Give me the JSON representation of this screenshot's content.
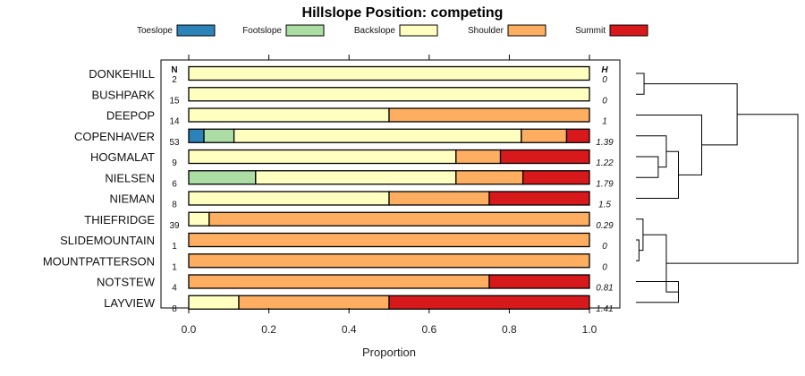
{
  "chart_data": {
    "type": "bar",
    "orientation": "horizontal-stacked",
    "title": "Hillslope Position: competing",
    "xlabel": "Proportion",
    "xlim": [
      0,
      1
    ],
    "xticks": [
      "0.0",
      "0.2",
      "0.4",
      "0.6",
      "0.8",
      "1.0"
    ],
    "n_header": "N",
    "h_header": "H",
    "legend_position": "top",
    "series": [
      {
        "name": "Toeslope",
        "color": "#2b83ba"
      },
      {
        "name": "Footslope",
        "color": "#abdda4"
      },
      {
        "name": "Backslope",
        "color": "#ffffbf"
      },
      {
        "name": "Shoulder",
        "color": "#fdae61"
      },
      {
        "name": "Summit",
        "color": "#d7191c"
      }
    ],
    "rows": [
      {
        "label": "DONKEHILL",
        "n": "2",
        "h": "0",
        "values": [
          0,
          0,
          1,
          0,
          0
        ]
      },
      {
        "label": "BUSHPARK",
        "n": "15",
        "h": "0",
        "values": [
          0,
          0,
          1,
          0,
          0
        ]
      },
      {
        "label": "DEEPOP",
        "n": "14",
        "h": "1",
        "values": [
          0,
          0,
          0.5,
          0.5,
          0
        ]
      },
      {
        "label": "COPENHAVER",
        "n": "53",
        "h": "1.39",
        "values": [
          0.038,
          0.075,
          0.717,
          0.113,
          0.057
        ]
      },
      {
        "label": "HOGMALAT",
        "n": "9",
        "h": "1.22",
        "values": [
          0,
          0,
          0.667,
          0.111,
          0.222
        ]
      },
      {
        "label": "NIELSEN",
        "n": "6",
        "h": "1.79",
        "values": [
          0,
          0.167,
          0.5,
          0.167,
          0.166
        ]
      },
      {
        "label": "NIEMAN",
        "n": "8",
        "h": "1.5",
        "values": [
          0,
          0,
          0.5,
          0.25,
          0.25
        ]
      },
      {
        "label": "THIEFRIDGE",
        "n": "39",
        "h": "0.29",
        "values": [
          0,
          0,
          0.051,
          0.949,
          0
        ]
      },
      {
        "label": "SLIDEMOUNTAIN",
        "n": "1",
        "h": "0",
        "values": [
          0,
          0,
          0,
          1,
          0
        ]
      },
      {
        "label": "MOUNTPATTERSON",
        "n": "1",
        "h": "0",
        "values": [
          0,
          0,
          0,
          1,
          0
        ]
      },
      {
        "label": "NOTSTEW",
        "n": "4",
        "h": "0.81",
        "values": [
          0,
          0,
          0,
          0.75,
          0.25
        ]
      },
      {
        "label": "LAYVIEW",
        "n": "8",
        "h": "1.41",
        "values": [
          0,
          0,
          0.125,
          0.375,
          0.5
        ]
      }
    ],
    "dendrogram": {
      "nodes": [
        {
          "left": "r0",
          "right": "r1",
          "height": 0.08
        },
        {
          "left": "r4",
          "right": "r5",
          "height": 0.22
        },
        {
          "left": "r3",
          "right": "n1",
          "height": 0.3
        },
        {
          "left": "n2",
          "right": "r6",
          "height": 0.42
        },
        {
          "left": "r2",
          "right": "n3",
          "height": 0.65
        },
        {
          "left": "n0",
          "right": "n4",
          "height": 1.0
        },
        {
          "left": "r8",
          "right": "r9",
          "height": 0.03
        },
        {
          "left": "r7",
          "right": "n6",
          "height": 0.07
        },
        {
          "left": "r10",
          "right": "r11",
          "height": 0.42
        },
        {
          "left": "n7",
          "right": "n8",
          "height": 0.3
        },
        {
          "left": "n5",
          "right": "n9",
          "height": 1.6
        }
      ]
    }
  }
}
